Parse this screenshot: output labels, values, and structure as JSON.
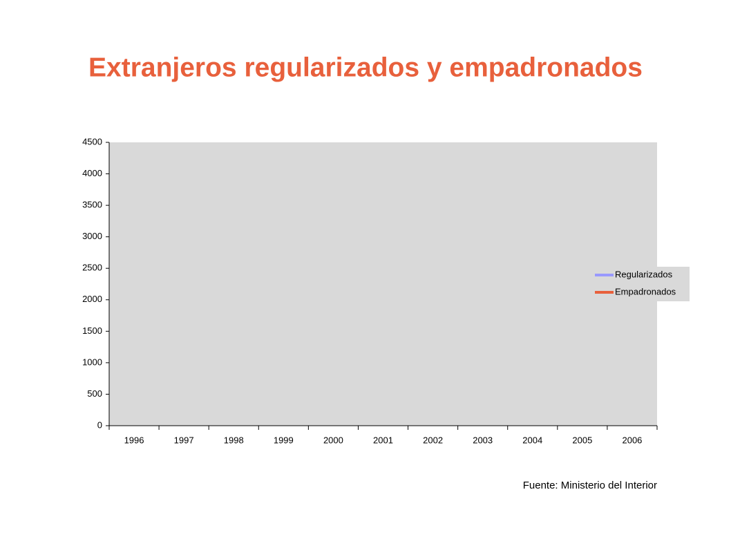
{
  "chart_data": {
    "type": "line",
    "title": "Extranjeros regularizados y empadronados",
    "source": "Fuente: Ministerio del Interior",
    "categories": [
      "1996",
      "1997",
      "1998",
      "1999",
      "2000",
      "2001",
      "2002",
      "2003",
      "2004",
      "2005",
      "2006"
    ],
    "series": [
      {
        "name": "Regularizados",
        "color": "#9999ff",
        "values": [
          null,
          null,
          null,
          null,
          null,
          null,
          null,
          null,
          null,
          null,
          null
        ]
      },
      {
        "name": "Empadronados",
        "color": "#e8603c",
        "values": [
          null,
          null,
          null,
          null,
          null,
          null,
          null,
          null,
          null,
          null,
          null
        ]
      }
    ],
    "ylim": [
      0,
      4500
    ],
    "yticks": [
      0,
      500,
      1000,
      1500,
      2000,
      2500,
      3000,
      3500,
      4000,
      4500
    ],
    "plot_background": "#d9d9d9",
    "title_color": "#e8603c",
    "legend": "right"
  }
}
